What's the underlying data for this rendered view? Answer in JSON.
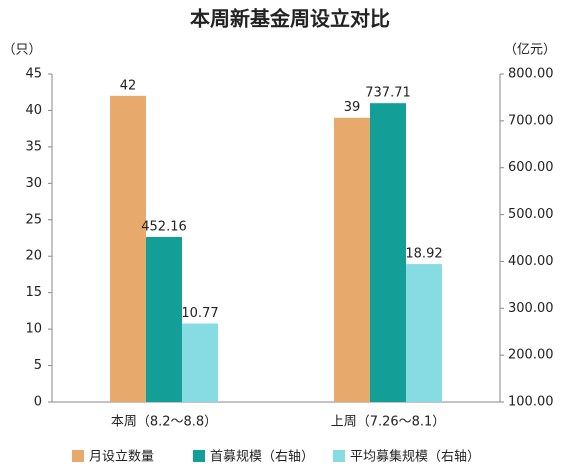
{
  "chart_data": {
    "type": "bar",
    "title": "本周新基金周设立对比",
    "y_label": "（只）",
    "y2_label": "（亿元）",
    "categories": [
      "本周（8.2～8.8）",
      "上周（7.26～8.1）"
    ],
    "series": [
      {
        "name": "月设立数量",
        "color": "#e8a96c",
        "values": [
          42,
          39
        ]
      },
      {
        "name": "首募规模（右轴）",
        "color": "#139e98",
        "values": [
          452.16,
          737.71
        ],
        "axis": "y2"
      },
      {
        "name": "平均募集规模（右轴）",
        "color": "#87dbe3",
        "values": [
          10.77,
          18.92
        ]
      }
    ],
    "ylim": [
      0,
      45
    ],
    "yticks": [
      0,
      5,
      10,
      15,
      20,
      25,
      30,
      35,
      40,
      45
    ],
    "y2lim": [
      100,
      800
    ],
    "y2ticks": [
      {
        "value": 100,
        "label": "100.00"
      },
      {
        "value": 200,
        "label": "200.00"
      },
      {
        "value": 300,
        "label": "300.00"
      },
      {
        "value": 400,
        "label": "400.00"
      },
      {
        "value": 500,
        "label": "500.00"
      },
      {
        "value": 600,
        "label": "600.00"
      },
      {
        "value": 700,
        "label": "700.00"
      },
      {
        "value": 800,
        "label": "800.00"
      }
    ],
    "legend": "bottom"
  }
}
